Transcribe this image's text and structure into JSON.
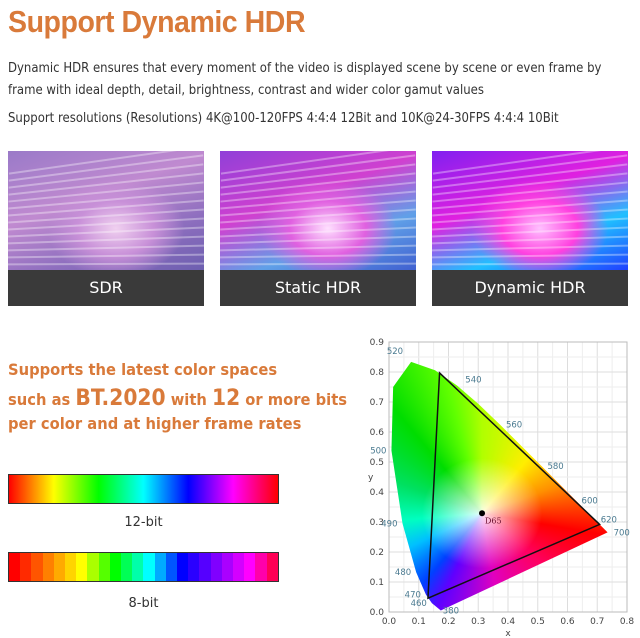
{
  "title": "Support Dynamic HDR",
  "description": "Dynamic HDR ensures that every moment of the video is displayed scene by scene or even frame by frame with ideal depth, detail, brightness, contrast and wider color gamut values",
  "resolutions": "Support resolutions (Resolutions) 4K@100-120FPS 4:4:4 12Bit and 10K@24-30FPS 4:4:4 10Bit",
  "panels": [
    {
      "label": "SDR"
    },
    {
      "label": "Static HDR"
    },
    {
      "label": "Dynamic HDR"
    }
  ],
  "color_text": {
    "line1": "Supports the latest color spaces",
    "pre": "such as ",
    "bt": "BT.2020",
    "with": " with ",
    "twelve": "12",
    "post": " or more bits",
    "line3": "per color and at higher frame rates",
    "color": "#d97a3a"
  },
  "bars": {
    "bit12": "12-bit",
    "bit8": "8-bit",
    "bit8_colors": [
      "#ff0000",
      "#ff2a00",
      "#ff5500",
      "#ff8000",
      "#ffaa00",
      "#ffd400",
      "#ffff00",
      "#aaff00",
      "#55ff00",
      "#00ff00",
      "#00ff55",
      "#00ffaa",
      "#00ffff",
      "#00aaff",
      "#0055ff",
      "#0000ff",
      "#2a00ff",
      "#5500ff",
      "#8000ff",
      "#aa00ff",
      "#d400ff",
      "#ff00ff",
      "#ff00aa",
      "#ff0055"
    ]
  },
  "chart_data": {
    "type": "scatter",
    "xlabel": "x",
    "ylabel": "y",
    "xlim": [
      0,
      0.8
    ],
    "ylim": [
      0,
      0.9
    ],
    "xticks": [
      "0.0",
      "0.1",
      "0.2",
      "0.3",
      "0.4",
      "0.5",
      "0.6",
      "0.7",
      "0.8"
    ],
    "yticks": [
      "0.0",
      "0.1",
      "0.2",
      "0.3",
      "0.4",
      "0.5",
      "0.6",
      "0.7",
      "0.8",
      "0.9"
    ],
    "grid": true,
    "spectral_locus": [
      [
        0.1741,
        0.005
      ],
      [
        0.144,
        0.0297
      ],
      [
        0.1241,
        0.0578
      ],
      [
        0.0913,
        0.1327
      ],
      [
        0.0454,
        0.295
      ],
      [
        0.0082,
        0.5384
      ],
      [
        0.0139,
        0.7502
      ],
      [
        0.0743,
        0.8338
      ],
      [
        0.1547,
        0.8059
      ],
      [
        0.2296,
        0.7543
      ],
      [
        0.3016,
        0.6923
      ],
      [
        0.3731,
        0.6245
      ],
      [
        0.5125,
        0.4866
      ],
      [
        0.627,
        0.3725
      ],
      [
        0.6915,
        0.3083
      ],
      [
        0.7347,
        0.2653
      ]
    ],
    "wavelength_labels": [
      {
        "label": "520",
        "x": 0.0743,
        "y": 0.8338
      },
      {
        "label": "540",
        "x": 0.2296,
        "y": 0.7543
      },
      {
        "label": "560",
        "x": 0.3731,
        "y": 0.6245
      },
      {
        "label": "580",
        "x": 0.5125,
        "y": 0.4866
      },
      {
        "label": "600",
        "x": 0.627,
        "y": 0.3725
      },
      {
        "label": "620",
        "x": 0.6915,
        "y": 0.3083
      },
      {
        "label": "700",
        "x": 0.7347,
        "y": 0.2653
      },
      {
        "label": "500",
        "x": 0.0082,
        "y": 0.5384
      },
      {
        "label": "490",
        "x": 0.0454,
        "y": 0.295
      },
      {
        "label": "480",
        "x": 0.0913,
        "y": 0.1327
      },
      {
        "label": "470",
        "x": 0.1241,
        "y": 0.0578
      },
      {
        "label": "460",
        "x": 0.144,
        "y": 0.0297
      },
      {
        "label": "380",
        "x": 0.1741,
        "y": 0.005
      }
    ],
    "gamut_triangle": [
      [
        0.708,
        0.292
      ],
      [
        0.17,
        0.797
      ],
      [
        0.131,
        0.046
      ]
    ],
    "white_point": {
      "label": "D65",
      "x": 0.3127,
      "y": 0.329
    }
  }
}
